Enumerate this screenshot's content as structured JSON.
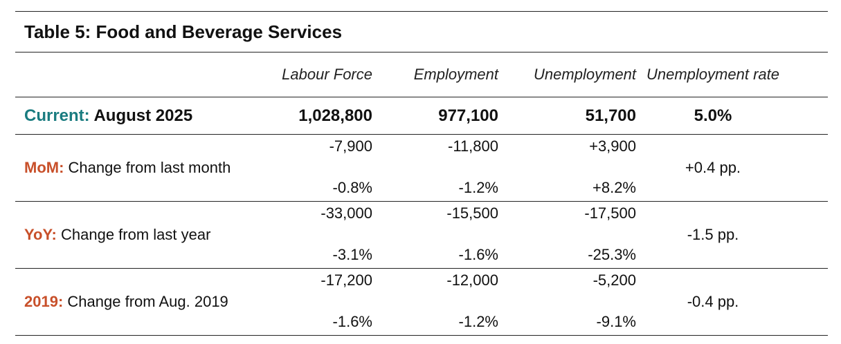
{
  "table": {
    "title": "Table 5: Food and Beverage Services",
    "columns": [
      "Labour Force",
      "Employment",
      "Unemployment",
      "Unemployment rate"
    ],
    "current": {
      "prefix": "Current:",
      "label": "August 2025",
      "labour_force": "1,028,800",
      "employment": "977,100",
      "unemployment": "51,700",
      "rate": "5.0%"
    },
    "changes": [
      {
        "prefix": "MoM:",
        "label": "Change from last month",
        "labour_force": {
          "abs": "-7,900",
          "pct": "-0.8%"
        },
        "employment": {
          "abs": "-11,800",
          "pct": "-1.2%"
        },
        "unemployment": {
          "abs": "+3,900",
          "pct": "+8.2%"
        },
        "rate": "+0.4 pp."
      },
      {
        "prefix": "YoY:",
        "label": "Change from last year",
        "labour_force": {
          "abs": "-33,000",
          "pct": "-3.1%"
        },
        "employment": {
          "abs": "-15,500",
          "pct": "-1.6%"
        },
        "unemployment": {
          "abs": "-17,500",
          "pct": "-25.3%"
        },
        "rate": "-1.5 pp."
      },
      {
        "prefix": "2019:",
        "label": "Change from Aug. 2019",
        "labour_force": {
          "abs": "-17,200",
          "pct": "-1.6%"
        },
        "employment": {
          "abs": "-12,000",
          "pct": "-1.2%"
        },
        "unemployment": {
          "abs": "-5,200",
          "pct": "-9.1%"
        },
        "rate": "-0.4 pp."
      }
    ]
  },
  "colors": {
    "current_accent": "#1a7c80",
    "change_accent": "#c8502a",
    "rule": "#222222"
  }
}
